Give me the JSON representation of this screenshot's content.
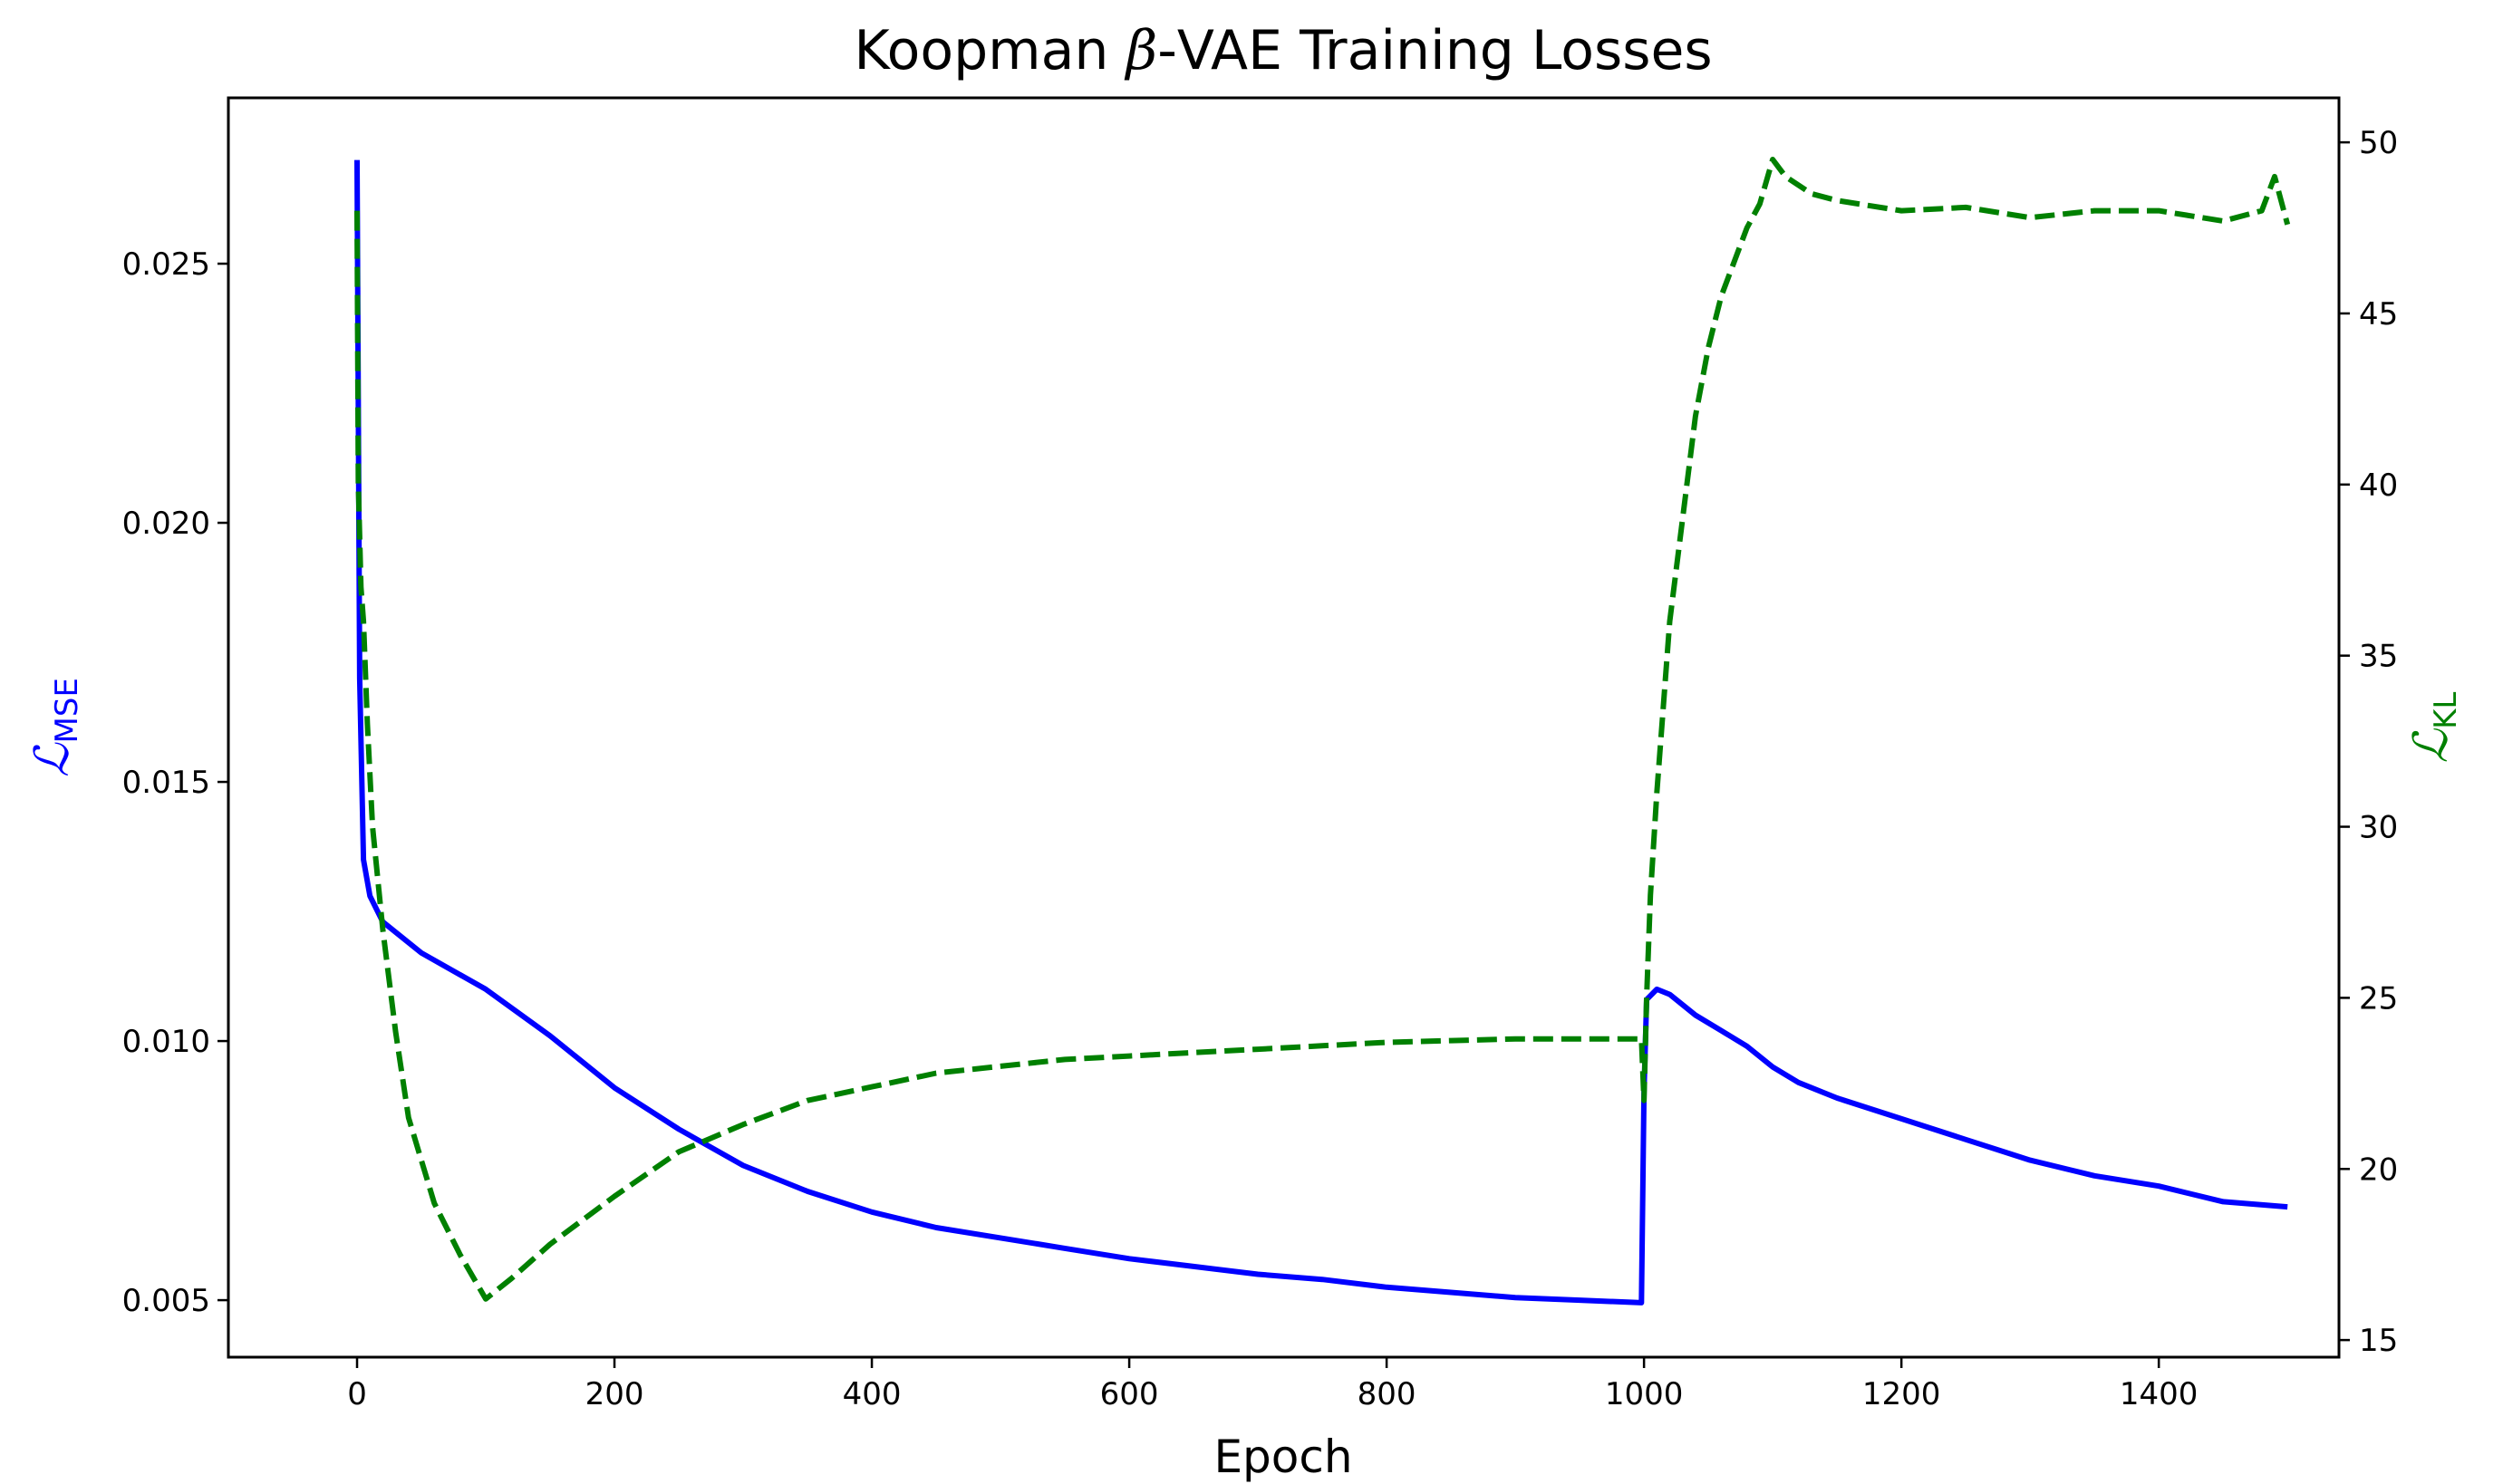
{
  "chart_data": {
    "type": "line",
    "title_prefix": "Koopman ",
    "title_symbol": "β",
    "title_suffix": "-VAE Training Losses",
    "xlabel": "Epoch",
    "ylabel_left_symbol": "ℒ",
    "ylabel_left_sub": "MSE",
    "ylabel_right_symbol": "ℒ",
    "ylabel_right_sub": "KL",
    "xlim": [
      -100,
      1540
    ],
    "ylim_left": [
      0.0039,
      0.0282
    ],
    "ylim_right": [
      14.5,
      51.3
    ],
    "xticks": [
      0,
      200,
      400,
      600,
      800,
      1000,
      1200,
      1400
    ],
    "xtick_labels": [
      "0",
      "200",
      "400",
      "600",
      "800",
      "1000",
      "1200",
      "1400"
    ],
    "yticks_left": [
      0.005,
      0.01,
      0.015,
      0.02,
      0.025
    ],
    "ytick_labels_left": [
      "0.005",
      "0.010",
      "0.015",
      "0.020",
      "0.025"
    ],
    "yticks_right": [
      15,
      20,
      25,
      30,
      35,
      40,
      45,
      50
    ],
    "ytick_labels_right": [
      "15",
      "20",
      "25",
      "30",
      "35",
      "40",
      "45",
      "50"
    ],
    "colors": {
      "mse": "#0000ff",
      "kl": "#008000",
      "axis": "#000000"
    },
    "series": [
      {
        "name": "MSE loss",
        "axis": "left",
        "style": "solid",
        "x": [
          0,
          2,
          5,
          10,
          20,
          50,
          100,
          150,
          200,
          250,
          300,
          350,
          400,
          450,
          500,
          550,
          600,
          650,
          700,
          750,
          800,
          850,
          900,
          950,
          998,
          1000,
          1002,
          1010,
          1020,
          1040,
          1060,
          1080,
          1100,
          1120,
          1150,
          1200,
          1250,
          1300,
          1350,
          1400,
          1450,
          1500
        ],
        "y": [
          0.027,
          0.017,
          0.0135,
          0.0128,
          0.0123,
          0.0117,
          0.011,
          0.0101,
          0.0091,
          0.0083,
          0.0076,
          0.0071,
          0.0067,
          0.0064,
          0.0062,
          0.006,
          0.0058,
          0.00565,
          0.0055,
          0.0054,
          0.00525,
          0.00515,
          0.00505,
          0.005,
          0.00495,
          0.009,
          0.0108,
          0.011,
          0.0109,
          0.0105,
          0.0102,
          0.0099,
          0.0095,
          0.0092,
          0.0089,
          0.0085,
          0.0081,
          0.0077,
          0.0074,
          0.0072,
          0.0069,
          0.0068
        ]
      },
      {
        "name": "KL loss",
        "axis": "right",
        "style": "dashed",
        "x": [
          0,
          1,
          3,
          5,
          8,
          12,
          20,
          30,
          40,
          60,
          80,
          100,
          120,
          150,
          200,
          250,
          300,
          350,
          400,
          450,
          500,
          550,
          600,
          650,
          700,
          750,
          800,
          850,
          900,
          950,
          998,
          1000,
          1002,
          1005,
          1010,
          1020,
          1030,
          1040,
          1050,
          1060,
          1070,
          1080,
          1090,
          1100,
          1110,
          1130,
          1150,
          1200,
          1250,
          1300,
          1350,
          1400,
          1450,
          1480,
          1490,
          1500
        ],
        "y": [
          48,
          40,
          37,
          36,
          33,
          30,
          27,
          24,
          21.5,
          19,
          17.5,
          16.2,
          16.8,
          17.8,
          19.2,
          20.5,
          21.3,
          22,
          22.4,
          22.8,
          23,
          23.2,
          23.3,
          23.4,
          23.5,
          23.6,
          23.7,
          23.75,
          23.8,
          23.8,
          23.8,
          22,
          25,
          28,
          31,
          36,
          39,
          42,
          44,
          45.5,
          46.5,
          47.5,
          48.2,
          49.5,
          49,
          48.5,
          48.3,
          48,
          48.1,
          47.8,
          48,
          48,
          47.7,
          48,
          49,
          47.6
        ]
      }
    ]
  }
}
